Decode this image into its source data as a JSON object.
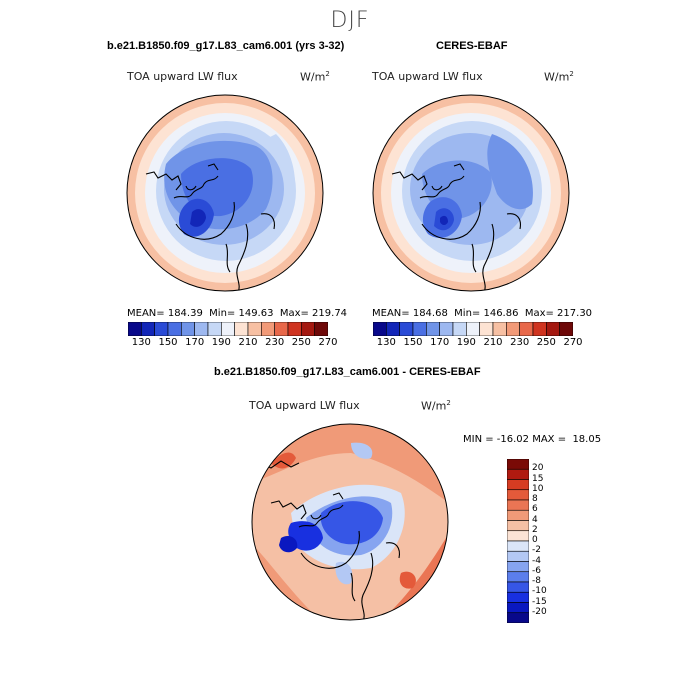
{
  "season": "DJF",
  "colors": {
    "abs_scale": [
      "#08088a",
      "#1226b8",
      "#2a4bd6",
      "#4a6fe3",
      "#7094e8",
      "#9db8f0",
      "#c6d8f6",
      "#eef2fa",
      "#fde3d3",
      "#f7c0a3",
      "#f29a78",
      "#e8684a",
      "#cf3420",
      "#a41810",
      "#6e0808"
    ],
    "diff_scale": [
      "#08088a",
      "#0a18c0",
      "#1830e0",
      "#3656e6",
      "#5b7eec",
      "#86a4f0",
      "#b3c8f4",
      "#dae5f8",
      "#fbe3d5",
      "#f5c0a5",
      "#f09a78",
      "#ea7554",
      "#e45a3a",
      "#d63c22",
      "#b01a10",
      "#7a0a06"
    ]
  },
  "panels": [
    {
      "title": "b.e21.B1850.f09_g17.L83_cam6.001 (yrs 3-32)",
      "variable": "TOA upward LW flux",
      "units_base": "W/m",
      "units_exp": "2",
      "stats": "MEAN= 184.39  Min= 149.63  Max= 219.74"
    },
    {
      "title": "CERES-EBAF",
      "variable": "TOA upward LW flux",
      "units_base": "W/m",
      "units_exp": "2",
      "stats": "MEAN= 184.68  Min= 146.86  Max= 217.30"
    },
    {
      "title": "b.e21.B1850.f09_g17.L83_cam6.001 - CERES-EBAF",
      "variable": "TOA upward LW flux",
      "units_base": "W/m",
      "units_exp": "2",
      "stats": "MIN = -16.02 MAX =  18.05"
    }
  ],
  "chart_data": [
    {
      "type": "heatmap",
      "projection": "polar stereographic, north pole",
      "title": "b.e21.B1850.f09_g17.L83_cam6.001 (yrs 3-32)",
      "variable": "TOA upward LW flux",
      "units": "W/m2",
      "mean": 184.39,
      "min": 149.63,
      "max": 219.74,
      "colorbar_levels": [
        130,
        140,
        150,
        160,
        170,
        180,
        190,
        200,
        210,
        220,
        230,
        240,
        250,
        260,
        270
      ],
      "colorbar_ticks": [
        "130",
        "150",
        "170",
        "190",
        "210",
        "230",
        "250",
        "270"
      ]
    },
    {
      "type": "heatmap",
      "projection": "polar stereographic, north pole",
      "title": "CERES-EBAF",
      "variable": "TOA upward LW flux",
      "units": "W/m2",
      "mean": 184.68,
      "min": 146.86,
      "max": 217.3,
      "colorbar_levels": [
        130,
        140,
        150,
        160,
        170,
        180,
        190,
        200,
        210,
        220,
        230,
        240,
        250,
        260,
        270
      ],
      "colorbar_ticks": [
        "130",
        "150",
        "170",
        "190",
        "210",
        "230",
        "250",
        "270"
      ]
    },
    {
      "type": "heatmap",
      "projection": "polar stereographic, north pole",
      "title": "b.e21.B1850.f09_g17.L83_cam6.001 - CERES-EBAF",
      "variable": "TOA upward LW flux",
      "units": "W/m2",
      "min": -16.02,
      "max": 18.05,
      "colorbar_levels": [
        20,
        15,
        10,
        8,
        6,
        4,
        2,
        0,
        -2,
        -4,
        -6,
        -8,
        -10,
        -15,
        -20
      ],
      "colorbar_ticks": [
        "20",
        "15",
        "10",
        "8",
        "6",
        "4",
        "2",
        "0",
        "-2",
        "-4",
        "-6",
        "-8",
        "-10",
        "-15",
        "-20"
      ]
    }
  ]
}
